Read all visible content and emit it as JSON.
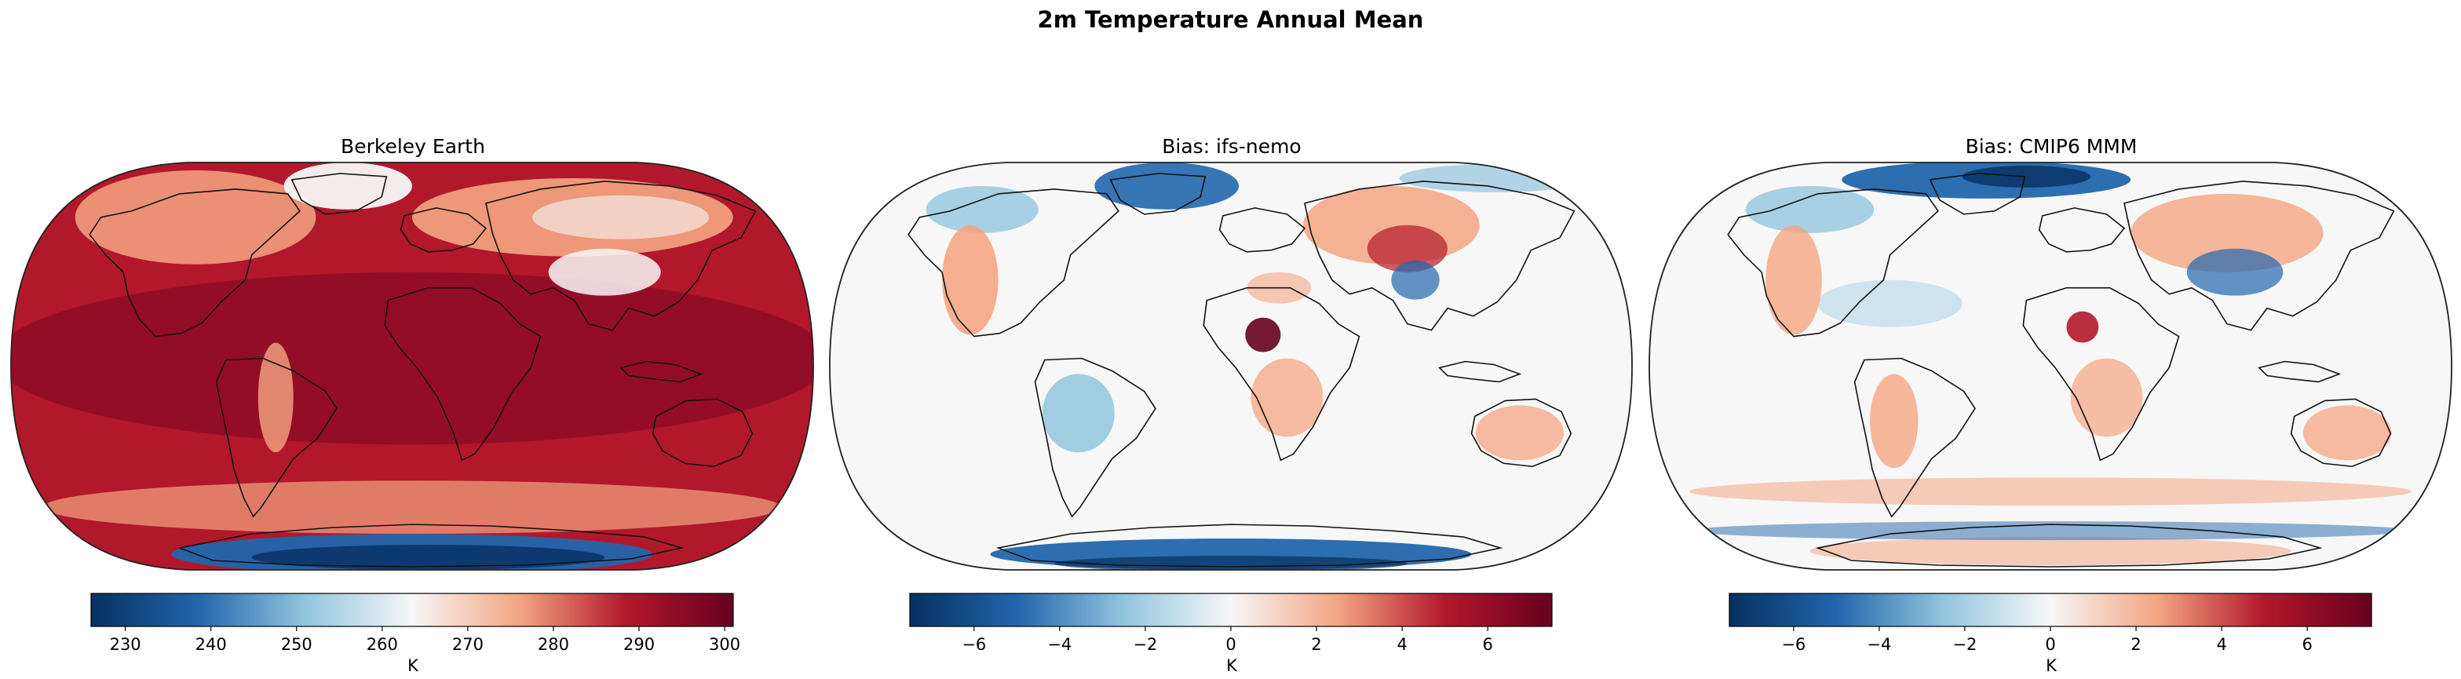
{
  "figure": {
    "title": "2m Temperature Annual Mean"
  },
  "panels": [
    {
      "title": "Berkeley Earth",
      "colormap": "RdBu_r",
      "colorbar": {
        "label": "K",
        "range": [
          226,
          301
        ],
        "ticks": [
          "230",
          "240",
          "250",
          "260",
          "270",
          "280",
          "290",
          "300"
        ],
        "tick_values": [
          230,
          240,
          250,
          260,
          270,
          280,
          290,
          300
        ]
      }
    },
    {
      "title": "Bias: ifs-nemo",
      "colormap": "RdBu_r",
      "colorbar": {
        "label": "K",
        "range": [
          -7.5,
          7.5
        ],
        "ticks": [
          "−6",
          "−4",
          "−2",
          "0",
          "2",
          "4",
          "6"
        ],
        "tick_values": [
          -6,
          -4,
          -2,
          0,
          2,
          4,
          6
        ]
      }
    },
    {
      "title": "Bias: CMIP6 MMM",
      "colormap": "RdBu_r",
      "colorbar": {
        "label": "K",
        "range": [
          -7.5,
          7.5
        ],
        "ticks": [
          "−6",
          "−4",
          "−2",
          "0",
          "2",
          "4",
          "6"
        ],
        "tick_values": [
          -6,
          -4,
          -2,
          0,
          2,
          4,
          6
        ]
      }
    }
  ],
  "colors": {
    "deep_red": "#67001f",
    "red": "#b2182b",
    "light_red": "#f4a582",
    "white": "#f7f7f7",
    "light_blue": "#92c5de",
    "blue": "#2166ac",
    "deep_blue": "#053061"
  }
}
